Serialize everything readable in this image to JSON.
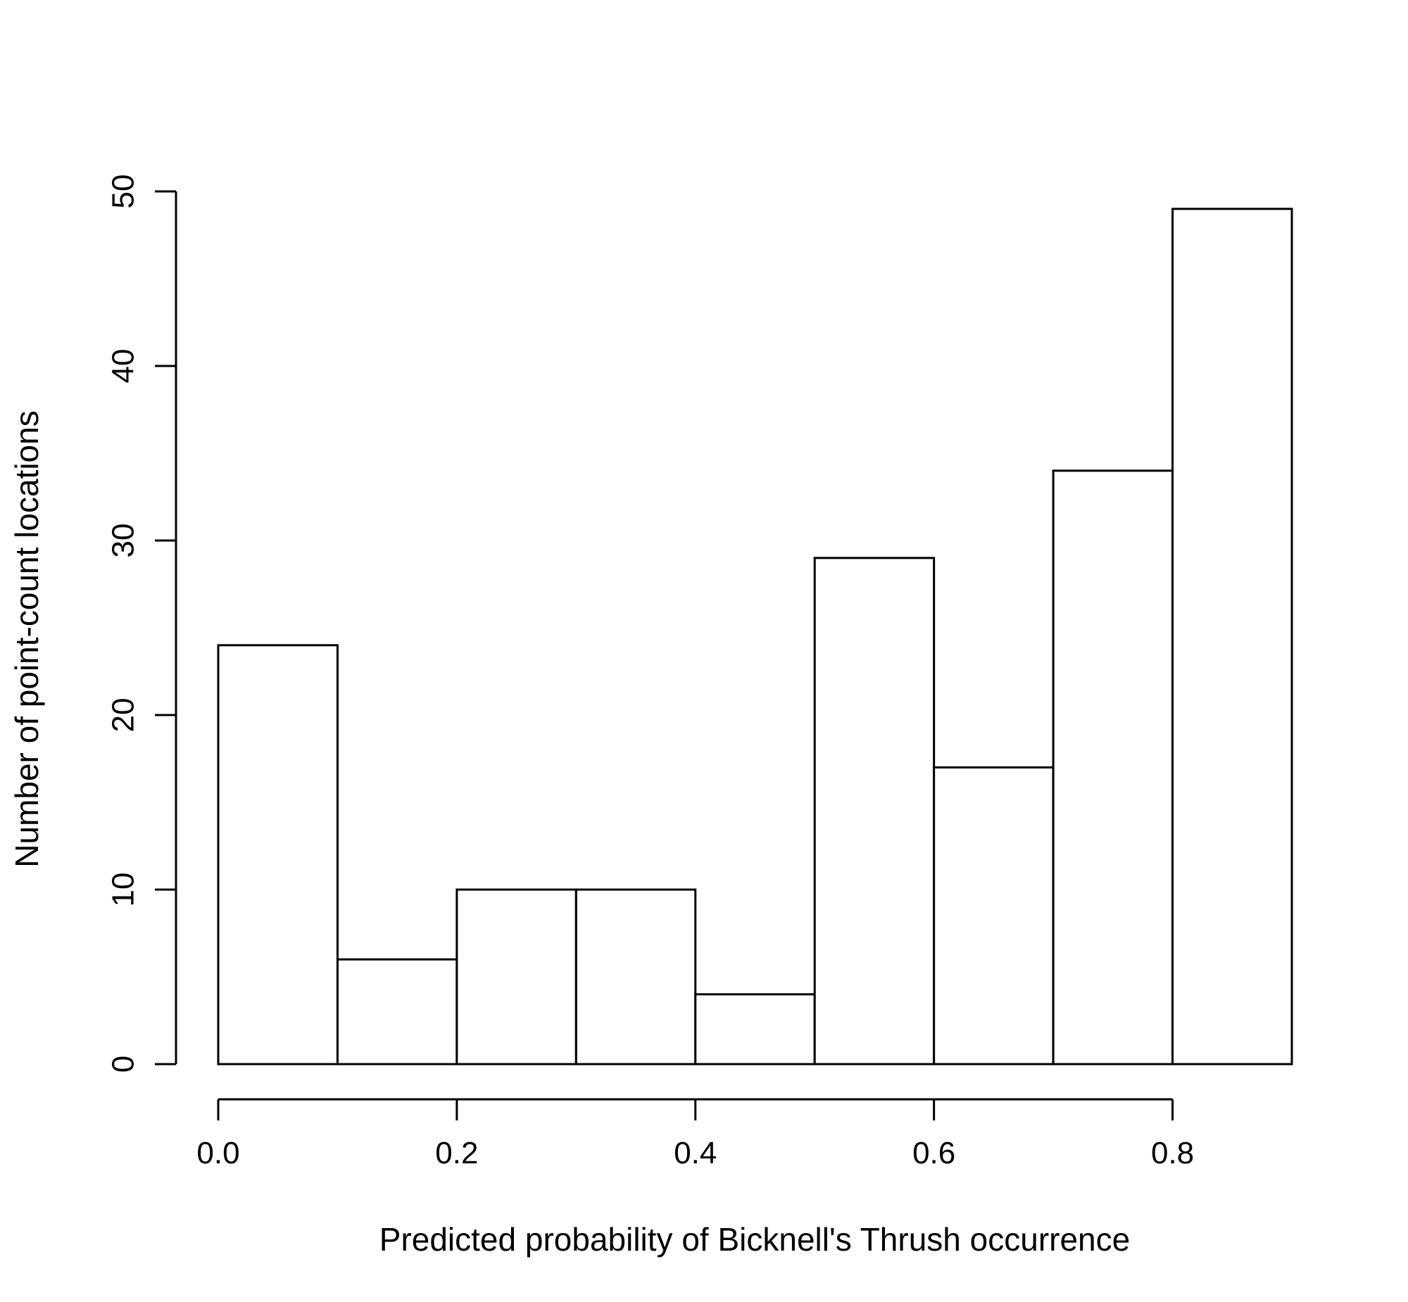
{
  "chart_data": {
    "type": "bar",
    "subtype": "histogram",
    "bins": [
      {
        "start": 0.0,
        "end": 0.1,
        "count": 24
      },
      {
        "start": 0.1,
        "end": 0.2,
        "count": 6
      },
      {
        "start": 0.2,
        "end": 0.3,
        "count": 10
      },
      {
        "start": 0.3,
        "end": 0.4,
        "count": 10
      },
      {
        "start": 0.4,
        "end": 0.5,
        "count": 4
      },
      {
        "start": 0.5,
        "end": 0.6,
        "count": 29
      },
      {
        "start": 0.6,
        "end": 0.7,
        "count": 17
      },
      {
        "start": 0.7,
        "end": 0.8,
        "count": 34
      },
      {
        "start": 0.8,
        "end": 0.9,
        "count": 49
      }
    ],
    "xlabel": "Predicted probability of Bicknell's Thrush occurrence",
    "ylabel": "Number of point-count locations",
    "x_ticks": [
      "0.0",
      "0.2",
      "0.4",
      "0.6",
      "0.8"
    ],
    "x_tick_values": [
      0.0,
      0.2,
      0.4,
      0.6,
      0.8
    ],
    "y_ticks": [
      "0",
      "10",
      "20",
      "30",
      "40",
      "50"
    ],
    "y_tick_values": [
      0,
      10,
      20,
      30,
      40,
      50
    ],
    "xlim": [
      0.0,
      0.9
    ],
    "ylim": [
      0,
      50
    ],
    "grid": false,
    "legend": "none",
    "bar_fill": "#ffffff",
    "bar_stroke": "#000000"
  }
}
